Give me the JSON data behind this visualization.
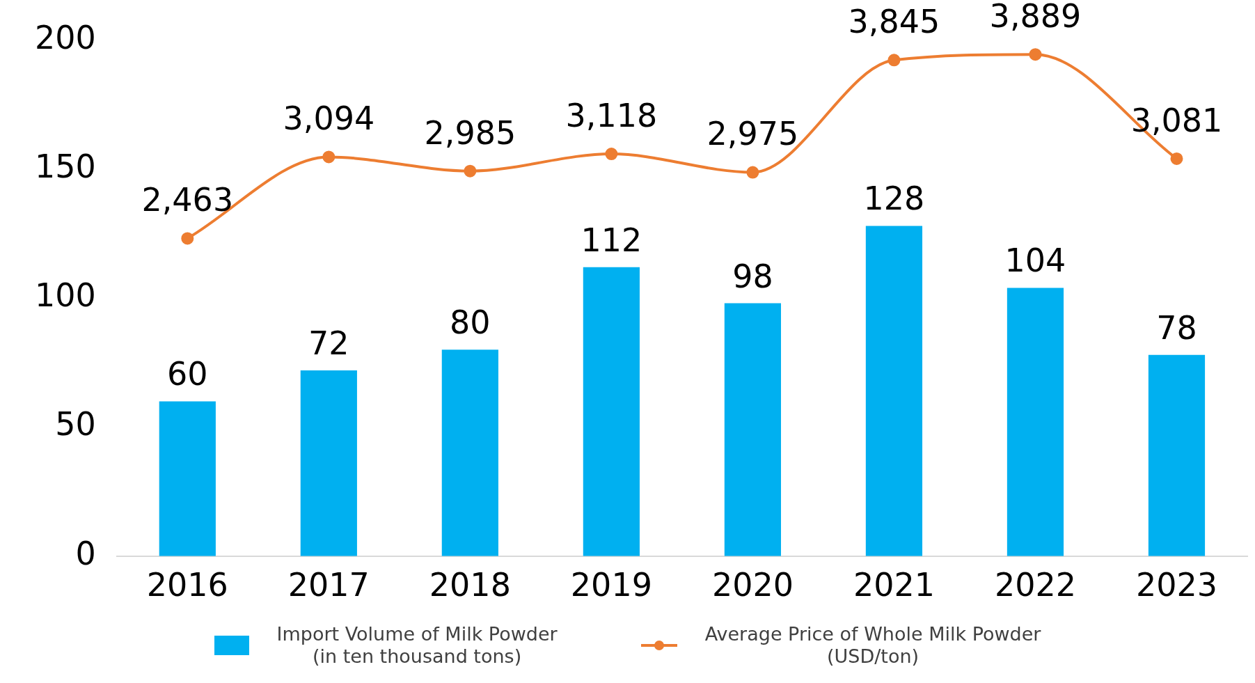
{
  "chart_data": {
    "type": "bar",
    "categories": [
      "2016",
      "2017",
      "2018",
      "2019",
      "2020",
      "2021",
      "2022",
      "2023"
    ],
    "series": [
      {
        "name": "Import Volume of Milk Powder\n(in ten thousand tons)",
        "color": "#00b0f0",
        "values": [
          60,
          72,
          80,
          112,
          98,
          128,
          104,
          78
        ]
      },
      {
        "name": "Average Price of Whole Milk Powder\n(USD/ton)",
        "type": "line",
        "axis": "y2",
        "color": "#ed7d31",
        "values": [
          2463,
          3094,
          2985,
          3118,
          2975,
          3845,
          3889,
          3081
        ],
        "value_labels": [
          "2,463",
          "3,094",
          "2,985",
          "3,118",
          "2,975",
          "3,845",
          "3,889",
          "3,081"
        ]
      }
    ],
    "ylim": [
      0,
      200
    ],
    "yticks": [
      0,
      50,
      100,
      150,
      200
    ],
    "data_labels": true,
    "grid": false,
    "legend": "bottom",
    "marker": "circle",
    "line_style": "solid"
  }
}
